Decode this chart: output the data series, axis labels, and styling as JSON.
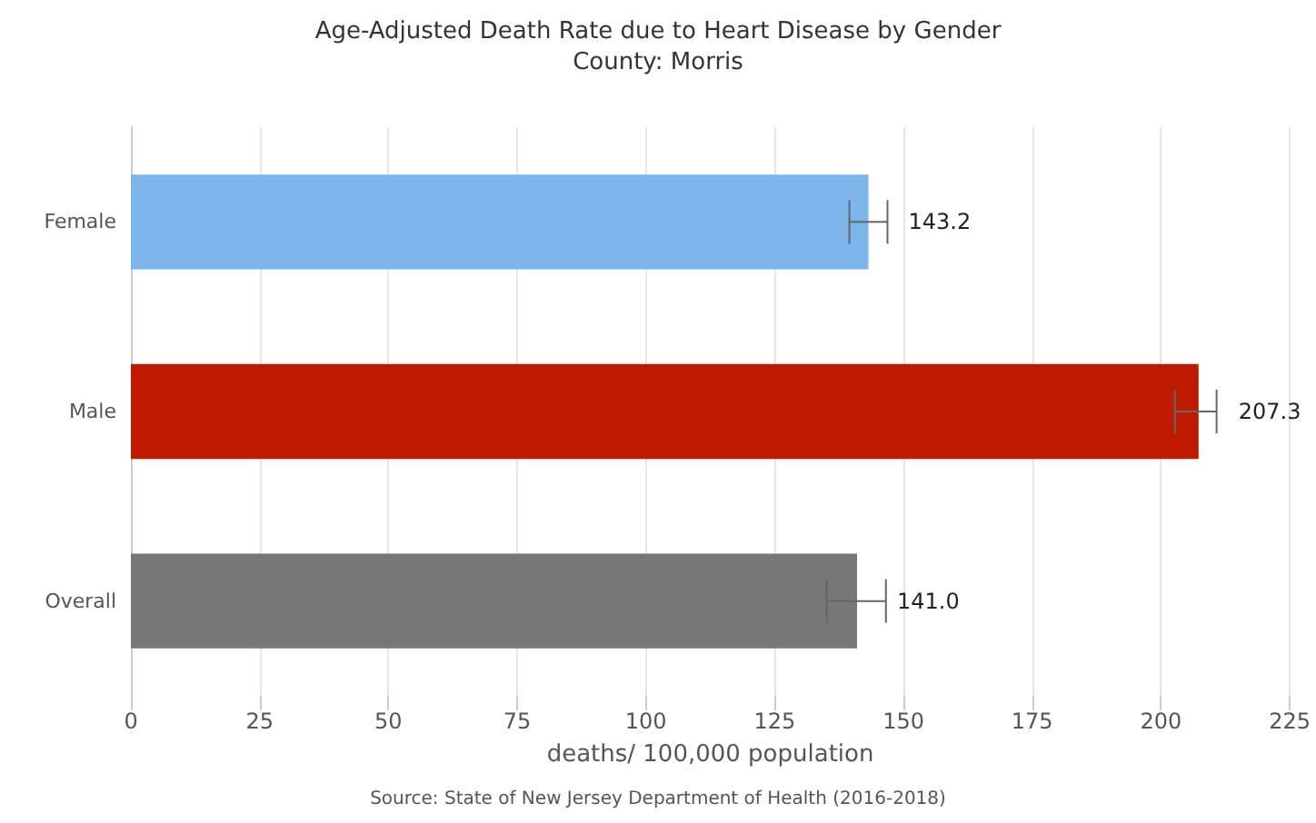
{
  "chart_data": {
    "type": "bar",
    "orientation": "horizontal",
    "title": "Age-Adjusted Death Rate due to Heart Disease by Gender",
    "subtitle": "County: Morris",
    "xlabel": "deaths/ 100,000 population",
    "categories": [
      "Female",
      "Male",
      "Overall"
    ],
    "values": [
      143.2,
      207.3,
      141.0
    ],
    "colors": [
      "#7cb5ec",
      "#bf1a00",
      "#777777"
    ],
    "errors": [
      [
        139.5,
        146.9
      ],
      [
        202.7,
        210.8
      ],
      [
        135.1,
        146.6
      ]
    ],
    "value_labels": [
      "143.2",
      "207.3",
      "141.0"
    ],
    "xlim": [
      0,
      225
    ],
    "xticks": [
      0,
      25,
      50,
      75,
      100,
      125,
      150,
      175,
      200,
      225
    ],
    "grid": "x",
    "annotations": [
      "Source: State of New Jersey Department of Health (2016-2018)"
    ]
  }
}
